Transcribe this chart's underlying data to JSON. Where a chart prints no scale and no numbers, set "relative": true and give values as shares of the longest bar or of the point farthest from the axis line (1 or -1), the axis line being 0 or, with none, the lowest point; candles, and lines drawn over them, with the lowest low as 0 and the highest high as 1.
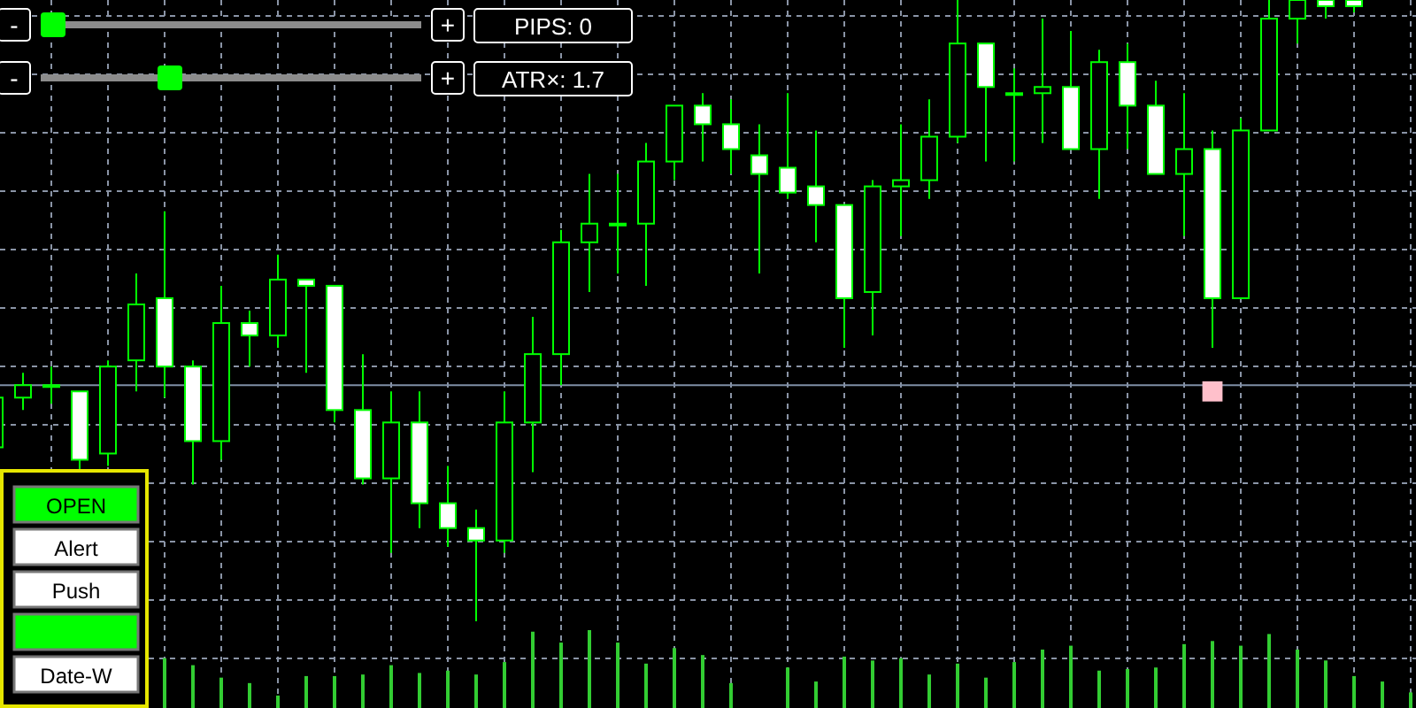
{
  "chart_data": [
    {
      "type": "candlestick",
      "relative": true,
      "grid": true,
      "color": "#00ff00",
      "marker": "square",
      "categories": [
        null,
        null,
        null,
        null,
        null,
        null,
        null,
        null,
        null,
        null,
        null,
        null,
        null,
        null,
        null,
        null,
        null,
        null,
        null,
        null,
        null,
        null,
        null,
        null,
        null,
        null,
        null,
        null,
        null,
        null,
        null,
        null,
        null,
        null,
        null,
        null,
        null,
        null,
        null,
        null,
        null,
        null,
        null,
        null,
        null,
        null,
        null,
        null,
        null,
        null,
        null
      ],
      "ohlc": [
        [
          0.28,
          0.36,
          0.28,
          0.36
        ],
        [
          0.36,
          0.4,
          0.34,
          0.38
        ],
        [
          0.38,
          0.41,
          0.35,
          0.38
        ],
        [
          0.37,
          0.37,
          0.24,
          0.26
        ],
        [
          0.27,
          0.42,
          0.25,
          0.41
        ],
        [
          0.42,
          0.56,
          0.37,
          0.51
        ],
        [
          0.52,
          0.66,
          0.36,
          0.41
        ],
        [
          0.41,
          0.42,
          0.22,
          0.29
        ],
        [
          0.29,
          0.54,
          0.26,
          0.48
        ],
        [
          0.48,
          0.5,
          0.41,
          0.46
        ],
        [
          0.46,
          0.59,
          0.44,
          0.55
        ],
        [
          0.55,
          0.55,
          0.4,
          0.54
        ],
        [
          0.54,
          0.54,
          0.32,
          0.34
        ],
        [
          0.34,
          0.43,
          0.22,
          0.23
        ],
        [
          0.23,
          0.37,
          0.11,
          0.32
        ],
        [
          0.32,
          0.37,
          0.15,
          0.19
        ],
        [
          0.19,
          0.25,
          0.12,
          0.15
        ],
        [
          0.15,
          0.18,
          0,
          0.13
        ],
        [
          0.13,
          0.37,
          0.11,
          0.32
        ],
        [
          0.32,
          0.49,
          0.24,
          0.43
        ],
        [
          0.43,
          0.63,
          0.38,
          0.61
        ],
        [
          0.61,
          0.72,
          0.53,
          0.64
        ],
        [
          0.64,
          0.72,
          0.56,
          0.64
        ],
        [
          0.64,
          0.77,
          0.54,
          0.74
        ],
        [
          0.74,
          0.83,
          0.71,
          0.83
        ],
        [
          0.83,
          0.85,
          0.74,
          0.8
        ],
        [
          0.8,
          0.84,
          0.72,
          0.76
        ],
        [
          0.75,
          0.8,
          0.56,
          0.72
        ],
        [
          0.73,
          0.85,
          0.68,
          0.69
        ],
        [
          0.7,
          0.79,
          0.61,
          0.67
        ],
        [
          0.67,
          0.67,
          0.44,
          0.52
        ],
        [
          0.53,
          0.71,
          0.46,
          0.7
        ],
        [
          0.7,
          0.8,
          0.62,
          0.71
        ],
        [
          0.71,
          0.84,
          0.68,
          0.78
        ],
        [
          0.78,
          1,
          0.77,
          0.93
        ],
        [
          0.93,
          0.93,
          0.74,
          0.86
        ],
        [
          0.85,
          0.89,
          0.74,
          0.85
        ],
        [
          0.85,
          0.97,
          0.77,
          0.86
        ],
        [
          0.86,
          0.95,
          0.76,
          0.76
        ],
        [
          0.76,
          0.92,
          0.68,
          0.9
        ],
        [
          0.9,
          0.93,
          0.76,
          0.83
        ],
        [
          0.83,
          0.87,
          0.72,
          0.72
        ],
        [
          0.72,
          0.85,
          0.62,
          0.76
        ],
        [
          0.76,
          0.79,
          0.44,
          0.52
        ],
        [
          0.52,
          0.81,
          0.52,
          0.79
        ],
        [
          0.79,
          1,
          0.79,
          0.97
        ],
        [
          0.97,
          1,
          0.93,
          1
        ],
        [
          1,
          1,
          0.97,
          0.99
        ],
        [
          1,
          1,
          0.98,
          0.99
        ],
        null,
        null
      ],
      "series": [
        {
          "type": "scatter",
          "color": "#ffc0cb",
          "values": [
            null,
            null,
            null,
            null,
            null,
            null,
            null,
            null,
            null,
            null,
            null,
            null,
            null,
            null,
            null,
            null,
            null,
            null,
            null,
            null,
            null,
            null,
            null,
            null,
            null,
            null,
            null,
            null,
            null,
            null,
            null,
            null,
            null,
            null,
            null,
            null,
            null,
            null,
            null,
            null,
            null,
            null,
            null,
            0.37,
            null,
            null,
            null,
            null,
            null,
            null,
            null
          ]
        }
      ],
      "ref_lines": [
        {
          "axis": "y",
          "value": 0.38,
          "color": "#7f8fa6"
        }
      ],
      "annotations": [
        "-",
        "+",
        "PIPS: 0",
        "-",
        "+",
        "ATR×: 1.7",
        "OPEN",
        "Alert",
        "Push",
        "Date-W"
      ]
    },
    {
      "type": "bar",
      "relative": true,
      "grid": true,
      "color": "#32cd32",
      "categories": [
        null,
        null,
        null,
        null,
        null,
        null,
        null,
        null,
        null,
        null,
        null,
        null,
        null,
        null,
        null,
        null,
        null,
        null,
        null,
        null,
        null,
        null,
        null,
        null,
        null,
        null,
        null,
        null,
        null,
        null,
        null,
        null,
        null,
        null,
        null,
        null,
        null,
        null,
        null,
        null,
        null,
        null,
        null,
        null,
        null,
        null,
        null,
        null,
        null,
        null,
        null
      ],
      "values": [
        null,
        null,
        null,
        null,
        null,
        null,
        0.64,
        0.55,
        0.39,
        0.32,
        0.16,
        0.41,
        0.41,
        0.43,
        0.55,
        0.45,
        0.48,
        0.43,
        0.59,
        0.98,
        0.84,
        1,
        0.84,
        0.57,
        0.77,
        0.68,
        0.32,
        null,
        0.52,
        0.34,
        0.66,
        0.61,
        0.64,
        0.43,
        0.57,
        0.39,
        0.59,
        0.75,
        0.8,
        0.48,
        0.5,
        0.52,
        0.82,
        0.86,
        0.8,
        0.95,
        0.75,
        0.61,
        0.41,
        0.34,
        0.2
      ]
    }
  ]
}
